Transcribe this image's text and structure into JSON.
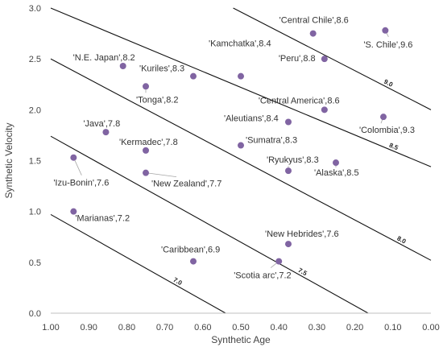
{
  "chart_data": {
    "type": "scatter",
    "xlabel": "Synthetic Age",
    "ylabel": "Synthetic Velocity",
    "xlim": [
      1.0,
      0.0
    ],
    "ylim": [
      0.0,
      3.0
    ],
    "x_reversed": true,
    "x_ticks": [
      "1.00",
      "0.90",
      "0.80",
      "0.70",
      "0.60",
      "0.50",
      "0.40",
      "0.30",
      "0.20",
      "0.10",
      "0.00"
    ],
    "y_ticks": [
      "0.0",
      "0.5",
      "1.0",
      "1.5",
      "2.0",
      "2.5",
      "3.0"
    ],
    "grid": false,
    "marker_color": "#8064a2",
    "points": [
      {
        "label": "'Central Chile',8.6",
        "x": 0.31,
        "y": 2.75
      },
      {
        "label": "'S. Chile',9.6",
        "x": 0.12,
        "y": 2.78
      },
      {
        "label": "'Kamchatka',8.4",
        "x": 0.5,
        "y": 2.33
      },
      {
        "label": "'Peru',8.8",
        "x": 0.28,
        "y": 2.5
      },
      {
        "label": "'N.E. Japan',8.2",
        "x": 0.81,
        "y": 2.43
      },
      {
        "label": "'Kuriles',8.3",
        "x": 0.625,
        "y": 2.33
      },
      {
        "label": "'Tonga',8.2",
        "x": 0.75,
        "y": 2.23
      },
      {
        "label": "'Central America',8.6",
        "x": 0.28,
        "y": 2.0
      },
      {
        "label": "'Colombia',9.3",
        "x": 0.125,
        "y": 1.93
      },
      {
        "label": "'Aleutians',8.4",
        "x": 0.375,
        "y": 1.88
      },
      {
        "label": "'Java',7.8",
        "x": 0.855,
        "y": 1.78
      },
      {
        "label": "'Sumatra',8.3",
        "x": 0.5,
        "y": 1.65
      },
      {
        "label": "'Kermadec',7.8",
        "x": 0.75,
        "y": 1.6
      },
      {
        "label": "'Ryukyus',8.3",
        "x": 0.375,
        "y": 1.4
      },
      {
        "label": "'Alaska',8.5",
        "x": 0.25,
        "y": 1.48
      },
      {
        "label": "'Izu-Bonin',7.6",
        "x": 0.94,
        "y": 1.53
      },
      {
        "label": "'New Zealand',7.7",
        "x": 0.75,
        "y": 1.38
      },
      {
        "label": "'Marianas',7.2",
        "x": 0.94,
        "y": 1.0
      },
      {
        "label": "'New Hebrides',7.6",
        "x": 0.375,
        "y": 0.68
      },
      {
        "label": "'Caribbean',6.9",
        "x": 0.625,
        "y": 0.51
      },
      {
        "label": "'Scotia arc',7.2",
        "x": 0.4,
        "y": 0.51
      }
    ],
    "contours": [
      {
        "label": "7.0",
        "from": [
          1.0,
          0.97
        ],
        "to": [
          0.54,
          0.0
        ]
      },
      {
        "label": "7.5",
        "from": [
          1.0,
          1.74
        ],
        "to": [
          0.165,
          0.0
        ]
      },
      {
        "label": "8.0",
        "from": [
          1.0,
          2.5
        ],
        "to": [
          0.0,
          0.52
        ]
      },
      {
        "label": "8.5",
        "from": [
          1.0,
          3.0
        ],
        "to": [
          0.0,
          1.44
        ]
      },
      {
        "label": "9.0",
        "from": [
          0.52,
          3.0
        ],
        "to": [
          0.0,
          2.0
        ]
      }
    ]
  }
}
